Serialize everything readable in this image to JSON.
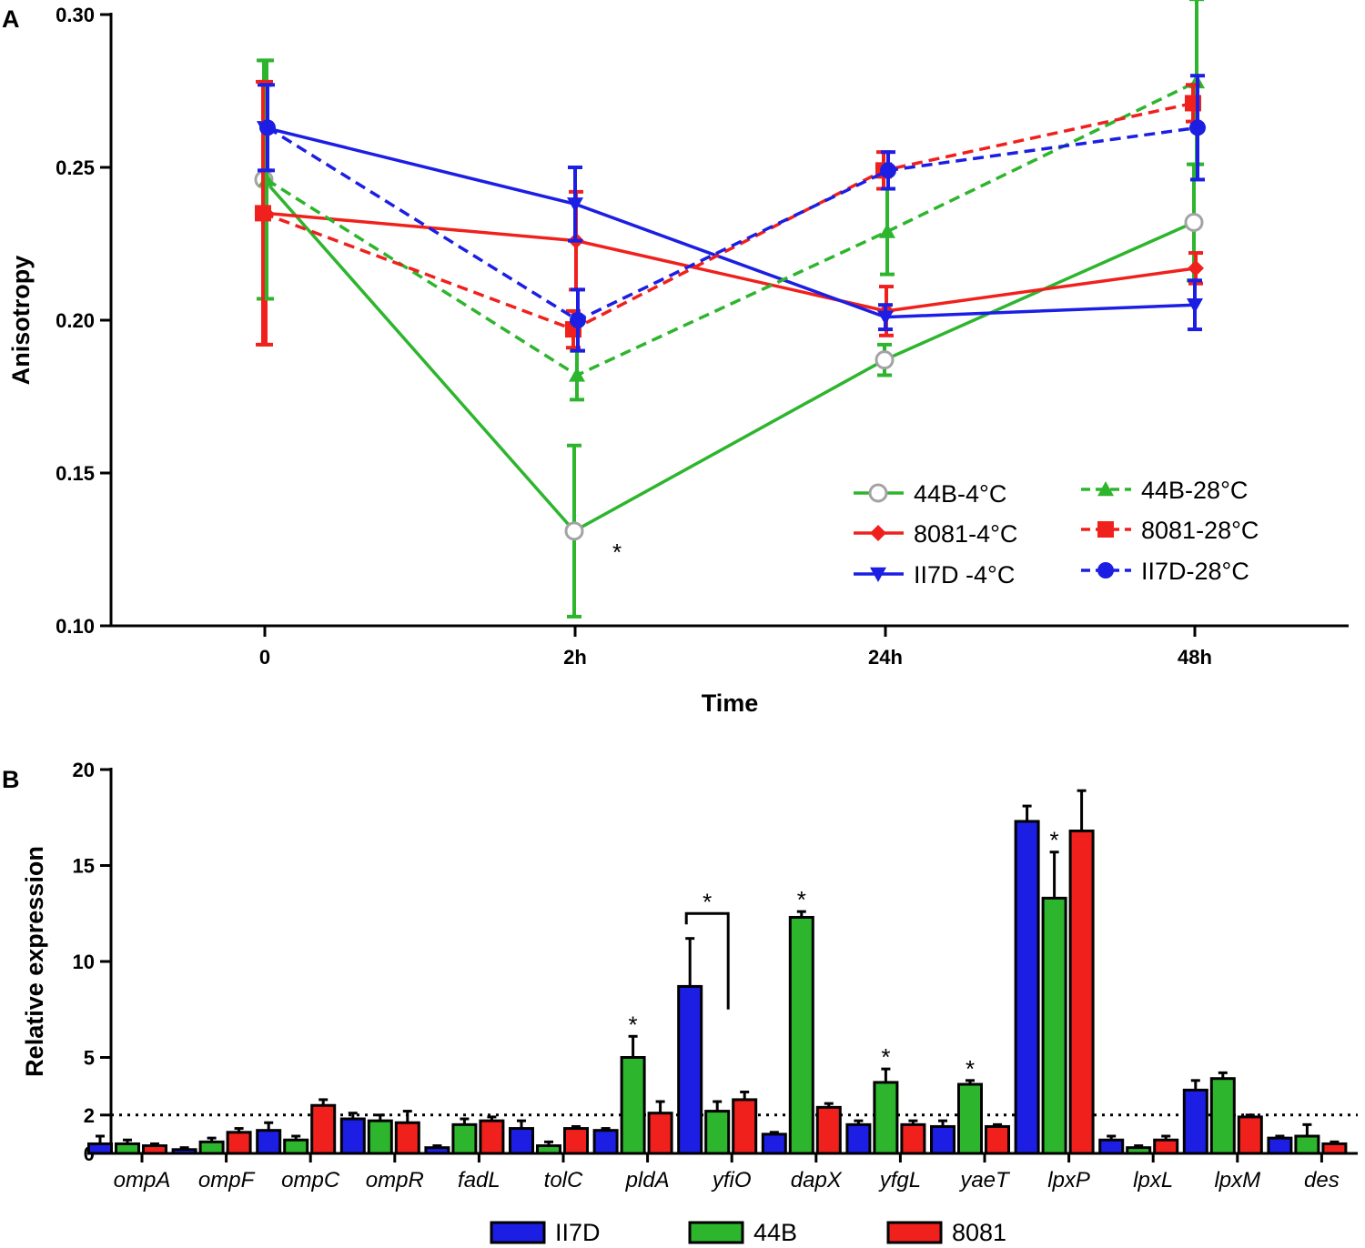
{
  "panels": {
    "a": {
      "label": "A"
    },
    "b": {
      "label": "B"
    }
  },
  "chart_data": [
    {
      "type": "line",
      "panel": "A",
      "title": "",
      "xlabel": "Time",
      "ylabel": "Anisotropy",
      "categories": [
        "0",
        "2h",
        "24h",
        "48h"
      ],
      "ylim": [
        0.1,
        0.3
      ],
      "yticks": [
        0.1,
        0.15,
        0.2,
        0.25,
        0.3
      ],
      "ytick_labels": [
        "0.10",
        "0.15",
        "0.20",
        "0.25",
        "0.30"
      ],
      "legend_position": "bottom-right",
      "series": [
        {
          "name": "44B-4°C",
          "color": "#2db52d",
          "marker_color": "#a3a3a3",
          "marker": "open-circle",
          "dash": "solid",
          "values": [
            0.246,
            0.131,
            0.187,
            0.232
          ],
          "errors": [
            0.039,
            0.028,
            0.005,
            0.019
          ]
        },
        {
          "name": "8081-4°C",
          "color": "#f0211d",
          "marker": "diamond",
          "dash": "solid",
          "values": [
            0.235,
            0.226,
            0.203,
            0.217
          ],
          "errors": [
            0.043,
            0.016,
            0.008,
            0.005
          ]
        },
        {
          "name": "II7D -4°C",
          "color": "#1c1ee3",
          "marker": "triangle-down",
          "dash": "solid",
          "values": [
            0.263,
            0.238,
            0.201,
            0.205
          ],
          "errors": [
            0.014,
            0.012,
            0.004,
            0.008
          ]
        },
        {
          "name": "44B-28°C",
          "color": "#2db52d",
          "marker": "triangle-up",
          "dash": "dashed",
          "values": [
            0.246,
            0.182,
            0.229,
            0.278
          ],
          "errors": [
            0.039,
            0.008,
            0.014,
            0.027
          ]
        },
        {
          "name": "8081-28°C",
          "color": "#f0211d",
          "marker": "square",
          "dash": "dashed",
          "values": [
            0.235,
            0.197,
            0.249,
            0.271
          ],
          "errors": [
            0.043,
            0.006,
            0.006,
            0.006
          ]
        },
        {
          "name": "II7D-28°C",
          "color": "#1c1ee3",
          "marker": "circle",
          "dash": "dashed",
          "values": [
            0.263,
            0.2,
            0.249,
            0.263
          ],
          "errors": [
            0.014,
            0.01,
            0.006,
            0.017
          ]
        }
      ],
      "annotations": [
        {
          "text": "*",
          "category": "2h",
          "y": 0.128
        }
      ]
    },
    {
      "type": "bar",
      "panel": "B",
      "title": "",
      "xlabel": "",
      "ylabel": "Relative expression",
      "categories": [
        "ompA",
        "ompF",
        "ompC",
        "ompR",
        "fadL",
        "tolC",
        "pldA",
        "yfiO",
        "dapX",
        "yfgL",
        "yaeT",
        "lpxP",
        "lpxL",
        "lpxM",
        "des"
      ],
      "ylim": [
        0,
        20
      ],
      "yticks": [
        0,
        2,
        5,
        10,
        15,
        20
      ],
      "ytick_labels": [
        "0",
        "2",
        "5",
        "10",
        "15",
        "20"
      ],
      "reference_line": {
        "y": 2,
        "style": "dotted"
      },
      "legend_position": "bottom-center",
      "series": [
        {
          "name": "II7D",
          "color": "#1c1ee3",
          "values": [
            0.5,
            0.2,
            1.2,
            1.8,
            0.3,
            1.3,
            1.2,
            8.7,
            1.0,
            1.5,
            1.4,
            17.3,
            0.7,
            3.3,
            0.8
          ],
          "errors": [
            0.4,
            0.1,
            0.4,
            0.3,
            0.1,
            0.4,
            0.1,
            2.5,
            0.1,
            0.2,
            0.3,
            0.8,
            0.2,
            0.5,
            0.1
          ]
        },
        {
          "name": "44B",
          "color": "#2db52d",
          "values": [
            0.5,
            0.6,
            0.7,
            1.7,
            1.5,
            0.4,
            5.0,
            2.2,
            12.3,
            3.7,
            3.6,
            13.3,
            0.3,
            3.9,
            0.9
          ],
          "errors": [
            0.2,
            0.2,
            0.2,
            0.3,
            0.3,
            0.2,
            1.1,
            0.5,
            0.3,
            0.7,
            0.2,
            2.4,
            0.1,
            0.3,
            0.6
          ]
        },
        {
          "name": "8081",
          "color": "#f0211d",
          "values": [
            0.4,
            1.1,
            2.5,
            1.6,
            1.7,
            1.3,
            2.1,
            2.8,
            2.4,
            1.5,
            1.4,
            16.8,
            0.7,
            1.9,
            0.5
          ],
          "errors": [
            0.1,
            0.2,
            0.3,
            0.6,
            0.2,
            0.1,
            0.6,
            0.4,
            0.2,
            0.2,
            0.1,
            2.1,
            0.2,
            0.1,
            0.1
          ]
        }
      ],
      "annotations": [
        {
          "text": "*",
          "category": "pldA",
          "series": "44B"
        },
        {
          "text": "*",
          "category": "yfiO",
          "series": "bracket II7D-44B"
        },
        {
          "text": "*",
          "category": "dapX",
          "series": "44B"
        },
        {
          "text": "*",
          "category": "yfgL",
          "series": "44B"
        },
        {
          "text": "*",
          "category": "yaeT",
          "series": "44B"
        },
        {
          "text": "*",
          "category": "lpxP",
          "series": "44B"
        }
      ]
    }
  ]
}
